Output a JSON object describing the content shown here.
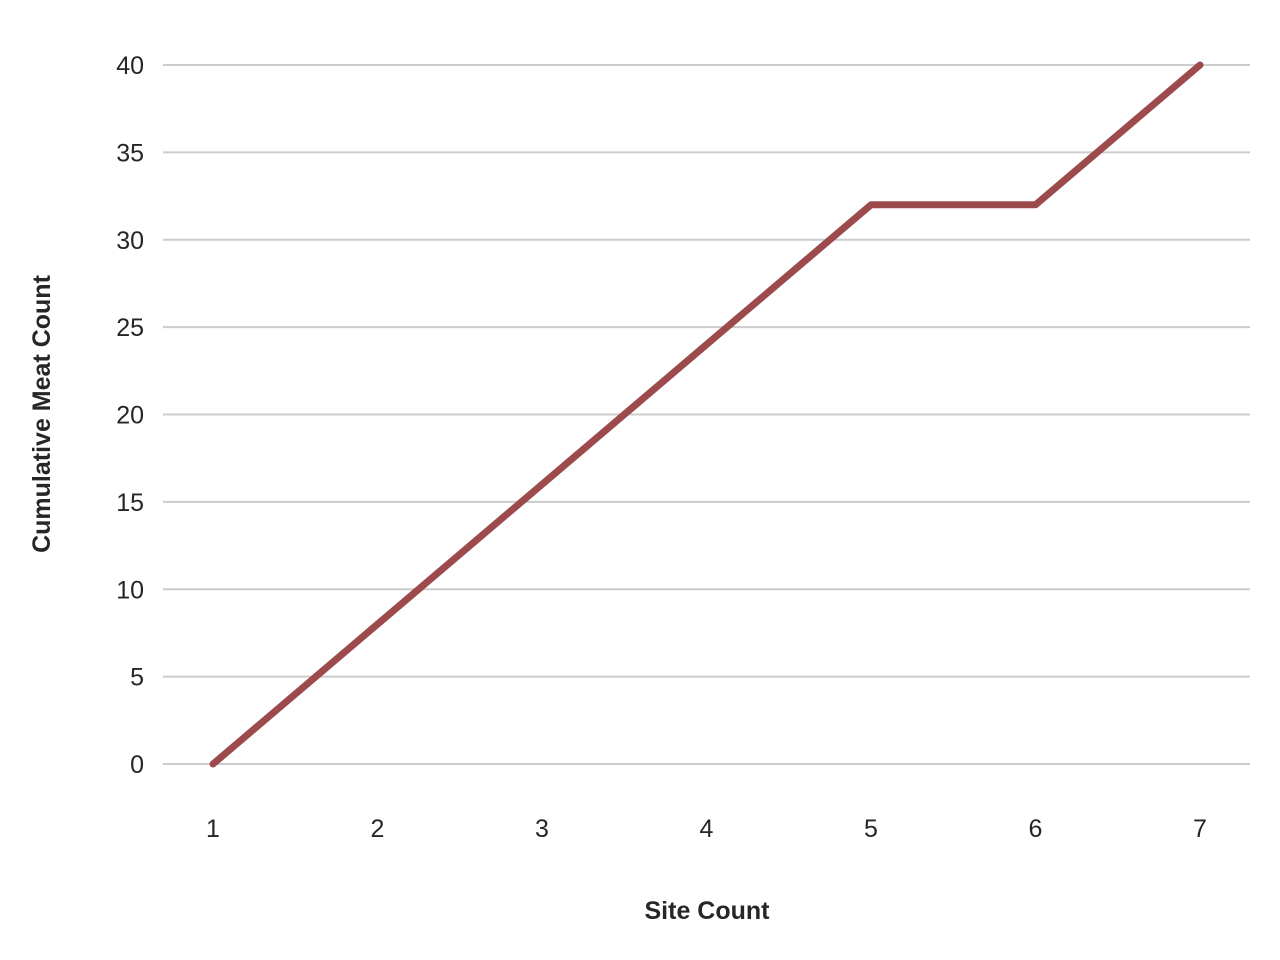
{
  "chart_data": {
    "type": "line",
    "title": "",
    "xlabel": "Site Count",
    "ylabel": "Cumulative Meat Count",
    "x": [
      1,
      2,
      3,
      4,
      5,
      6,
      7
    ],
    "series": [
      {
        "values": [
          0,
          8,
          16,
          24,
          32,
          32,
          40
        ],
        "color": "#9c4a4b"
      }
    ],
    "ylim": [
      0,
      40
    ],
    "yticks": [
      0,
      5,
      10,
      15,
      20,
      25,
      30,
      35,
      40
    ],
    "xticks": [
      1,
      2,
      3,
      4,
      5,
      6,
      7
    ],
    "grid": "horizontal",
    "legend": "none"
  }
}
